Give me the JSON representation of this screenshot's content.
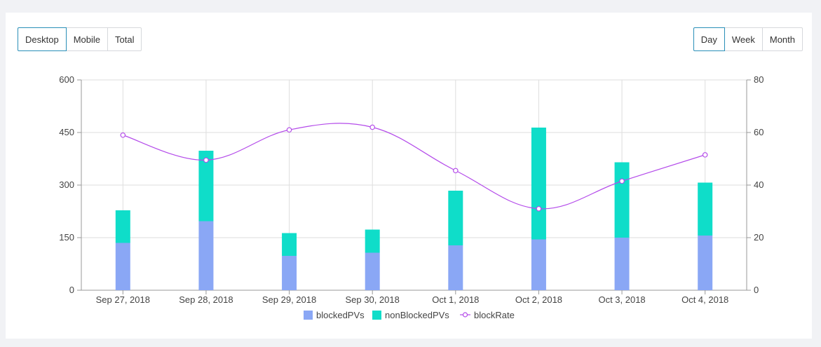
{
  "device_tabs": [
    {
      "label": "Desktop",
      "active": true
    },
    {
      "label": "Mobile",
      "active": false
    },
    {
      "label": "Total",
      "active": false
    }
  ],
  "period_tabs": [
    {
      "label": "Day",
      "active": true
    },
    {
      "label": "Week",
      "active": false
    },
    {
      "label": "Month",
      "active": false
    }
  ],
  "colors": {
    "blocked": "#8aa7f5",
    "nonBlocked": "#0fddc9",
    "rate": "#b44bea",
    "active_border": "#2a8fb8"
  },
  "chart_data": {
    "type": "bar",
    "stacked": true,
    "categories": [
      "Sep 27, 2018",
      "Sep 28, 2018",
      "Sep 29, 2018",
      "Sep 30, 2018",
      "Oct 1, 2018",
      "Oct 2, 2018",
      "Oct 3, 2018",
      "Oct 4, 2018"
    ],
    "series": [
      {
        "name": "blockedPVs",
        "type": "bar",
        "axis": "left",
        "values": [
          135,
          197,
          98,
          107,
          128,
          145,
          150,
          156
        ]
      },
      {
        "name": "nonBlockedPVs",
        "type": "bar",
        "axis": "left",
        "values": [
          93,
          201,
          65,
          66,
          156,
          319,
          215,
          151
        ]
      },
      {
        "name": "blockRate",
        "type": "line",
        "axis": "right",
        "values": [
          59,
          49.5,
          61,
          62,
          45.5,
          31,
          41.5,
          51.5
        ]
      }
    ],
    "y_left": {
      "min": 0,
      "max": 600,
      "ticks": [
        "0",
        "150",
        "300",
        "450",
        "600"
      ]
    },
    "y_right": {
      "min": 0,
      "max": 80,
      "ticks": [
        "0",
        "20",
        "40",
        "60",
        "80"
      ]
    },
    "legend": [
      "blockedPVs",
      "nonBlockedPVs",
      "blockRate"
    ],
    "legend_position": "bottom-center",
    "grid": true
  }
}
